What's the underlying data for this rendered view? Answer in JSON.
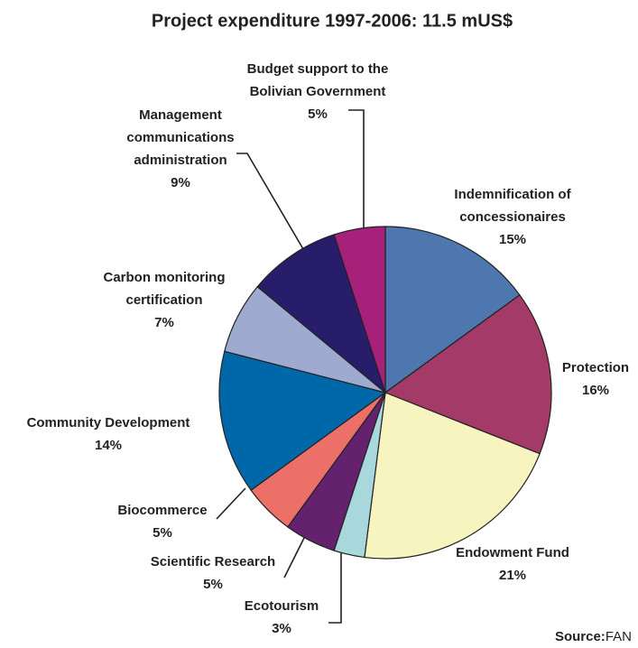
{
  "chart_data": {
    "type": "pie",
    "title": "Project expenditure 1997-2006: 11.5 mUS$",
    "categories": [
      [
        "Indemnification of",
        "concessionaires"
      ],
      [
        "Protection"
      ],
      [
        "Endowment Fund"
      ],
      [
        "Ecotourism"
      ],
      [
        "Scientific Research"
      ],
      [
        "Biocommerce"
      ],
      [
        "Community Development"
      ],
      [
        "Carbon monitoring",
        "certification"
      ],
      [
        "Management",
        "communications",
        "administration"
      ],
      [
        "Budget support to the",
        "Bolivian Government"
      ]
    ],
    "values": [
      15,
      16,
      21,
      3,
      5,
      5,
      14,
      7,
      9,
      5
    ],
    "value_labels": [
      "15%",
      "16%",
      "21%",
      "3%",
      "5%",
      "5%",
      "14%",
      "7%",
      "9%",
      "5%"
    ],
    "colors": [
      "#4e77b0",
      "#a33a68",
      "#f7f4c0",
      "#a9d8dc",
      "#64226e",
      "#ec7068",
      "#0067a8",
      "#9eaad0",
      "#271d6a",
      "#a5217a"
    ],
    "source_label": "Source:",
    "source": "FAN"
  }
}
